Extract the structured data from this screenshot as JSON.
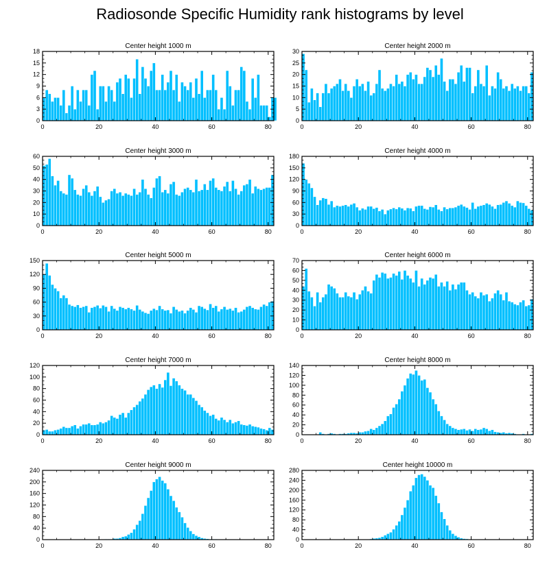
{
  "figure": {
    "title": "Radiosonde Specific Humidity rank histograms by level"
  },
  "colors": {
    "bar": "#00bfff",
    "bar_edge": "#ffffff",
    "axis": "#000000"
  },
  "chart_data": [
    {
      "type": "bar",
      "title": "Center height 1000 m",
      "xlim": [
        0,
        82
      ],
      "ylim": [
        0,
        18
      ],
      "xticks": [
        0,
        20,
        40,
        60,
        80
      ],
      "yticks": [
        0,
        3,
        6,
        9,
        12,
        15,
        18
      ],
      "values": [
        6,
        8,
        7,
        5,
        6,
        6,
        4,
        8,
        2,
        4,
        9,
        3,
        8,
        5,
        8,
        8,
        4,
        12,
        13,
        3,
        9,
        9,
        5,
        9,
        8,
        5,
        10,
        11,
        7,
        12,
        11,
        6,
        11,
        16,
        7,
        14,
        11,
        9,
        13,
        15,
        8,
        8,
        12,
        8,
        10,
        13,
        8,
        12,
        5,
        10,
        9,
        8,
        10,
        6,
        11,
        7,
        13,
        6,
        8,
        8,
        12,
        8,
        3,
        6,
        3,
        13,
        9,
        4,
        8,
        8,
        14,
        13,
        5,
        3,
        11,
        6,
        12,
        4,
        4,
        4,
        1,
        6,
        6
      ]
    },
    {
      "type": "bar",
      "title": "Center height 2000 m",
      "xlim": [
        0,
        82
      ],
      "ylim": [
        0,
        30
      ],
      "xticks": [
        0,
        20,
        40,
        60,
        80
      ],
      "yticks": [
        0,
        5,
        10,
        15,
        20,
        25,
        30
      ],
      "values": [
        29,
        22,
        8,
        14,
        9,
        12,
        6,
        12,
        16,
        12,
        14,
        15,
        16,
        18,
        13,
        16,
        13,
        10,
        15,
        18,
        15,
        16,
        13,
        17,
        11,
        12,
        16,
        22,
        14,
        13,
        14,
        16,
        15,
        20,
        16,
        17,
        15,
        20,
        21,
        18,
        20,
        16,
        16,
        19,
        23,
        22,
        19,
        24,
        20,
        27,
        17,
        13,
        18,
        18,
        16,
        21,
        24,
        17,
        23,
        23,
        12,
        15,
        22,
        16,
        15,
        24,
        11,
        15,
        14,
        21,
        18,
        14,
        15,
        13,
        16,
        14,
        15,
        13,
        15,
        15,
        12,
        21
      ]
    },
    {
      "type": "bar",
      "title": "Center height 3000 m",
      "xlim": [
        0,
        82
      ],
      "ylim": [
        0,
        60
      ],
      "xticks": [
        0,
        20,
        40,
        60,
        80
      ],
      "yticks": [
        0,
        10,
        20,
        30,
        40,
        50,
        60
      ],
      "values": [
        52,
        53,
        58,
        43,
        35,
        39,
        30,
        28,
        27,
        44,
        41,
        31,
        27,
        26,
        32,
        35,
        29,
        26,
        30,
        34,
        25,
        20,
        22,
        23,
        30,
        32,
        28,
        29,
        26,
        28,
        27,
        26,
        32,
        27,
        29,
        40,
        32,
        27,
        24,
        33,
        41,
        43,
        29,
        31,
        28,
        36,
        38,
        27,
        26,
        29,
        32,
        33,
        31,
        29,
        40,
        30,
        31,
        36,
        31,
        39,
        41,
        33,
        31,
        30,
        34,
        38,
        30,
        39,
        32,
        27,
        30,
        35,
        36,
        40,
        28,
        34,
        32,
        31,
        32,
        33,
        33,
        44
      ]
    },
    {
      "type": "bar",
      "title": "Center height 4000 m",
      "xlim": [
        0,
        82
      ],
      "ylim": [
        0,
        180
      ],
      "xticks": [
        0,
        20,
        40,
        60,
        80
      ],
      "yticks": [
        0,
        30,
        60,
        90,
        120,
        150,
        180
      ],
      "values": [
        162,
        120,
        110,
        98,
        75,
        54,
        66,
        72,
        70,
        55,
        64,
        48,
        52,
        50,
        52,
        54,
        50,
        55,
        58,
        48,
        40,
        45,
        42,
        50,
        50,
        44,
        47,
        38,
        42,
        30,
        40,
        43,
        46,
        43,
        48,
        45,
        40,
        46,
        45,
        38,
        50,
        52,
        52,
        44,
        42,
        49,
        48,
        54,
        42,
        38,
        48,
        43,
        46,
        46,
        48,
        52,
        55,
        50,
        47,
        42,
        60,
        44,
        50,
        52,
        54,
        58,
        55,
        50,
        44,
        54,
        55,
        60,
        64,
        58,
        52,
        48,
        64,
        60,
        59,
        52,
        44,
        40
      ]
    },
    {
      "type": "bar",
      "title": "Center height 5000 m",
      "xlim": [
        0,
        82
      ],
      "ylim": [
        0,
        150
      ],
      "xticks": [
        0,
        20,
        40,
        60,
        80
      ],
      "yticks": [
        0,
        30,
        60,
        90,
        120,
        150
      ],
      "values": [
        120,
        144,
        118,
        98,
        90,
        84,
        69,
        75,
        69,
        55,
        52,
        50,
        54,
        48,
        50,
        52,
        38,
        48,
        50,
        53,
        47,
        53,
        50,
        40,
        52,
        46,
        42,
        50,
        48,
        45,
        48,
        45,
        42,
        53,
        44,
        40,
        37,
        35,
        42,
        46,
        43,
        52,
        45,
        42,
        43,
        36,
        50,
        44,
        40,
        42,
        36,
        42,
        48,
        44,
        38,
        52,
        50,
        46,
        43,
        56,
        48,
        52,
        40,
        45,
        50,
        44,
        46,
        42,
        48,
        38,
        40,
        44,
        50,
        52,
        48,
        45,
        44,
        50,
        55,
        52,
        60,
        62
      ]
    },
    {
      "type": "bar",
      "title": "Center height 6000 m",
      "xlim": [
        0,
        82
      ],
      "ylim": [
        0,
        70
      ],
      "xticks": [
        0,
        20,
        40,
        60,
        80
      ],
      "yticks": [
        0,
        10,
        20,
        30,
        40,
        50,
        60,
        70
      ],
      "values": [
        44,
        62,
        39,
        33,
        24,
        38,
        28,
        33,
        36,
        46,
        44,
        42,
        37,
        33,
        33,
        38,
        34,
        33,
        38,
        31,
        36,
        40,
        44,
        39,
        37,
        50,
        56,
        53,
        58,
        57,
        52,
        53,
        57,
        55,
        59,
        51,
        60,
        55,
        52,
        48,
        60,
        44,
        52,
        46,
        50,
        53,
        52,
        56,
        44,
        48,
        44,
        49,
        40,
        46,
        41,
        46,
        48,
        48,
        40,
        36,
        38,
        34,
        32,
        38,
        35,
        36,
        29,
        32,
        37,
        40,
        36,
        30,
        38,
        29,
        28,
        26,
        25,
        28,
        30,
        24,
        25,
        31
      ]
    },
    {
      "type": "bar",
      "title": "Center height 7000 m",
      "xlim": [
        0,
        82
      ],
      "ylim": [
        0,
        120
      ],
      "xticks": [
        0,
        20,
        40,
        60,
        80
      ],
      "yticks": [
        0,
        20,
        40,
        60,
        80,
        100,
        120
      ],
      "values": [
        8,
        9,
        6,
        6,
        8,
        9,
        11,
        14,
        12,
        12,
        15,
        17,
        11,
        15,
        18,
        18,
        20,
        17,
        17,
        18,
        22,
        20,
        22,
        25,
        33,
        30,
        28,
        35,
        38,
        30,
        38,
        43,
        48,
        52,
        58,
        63,
        70,
        78,
        83,
        86,
        80,
        88,
        82,
        95,
        108,
        85,
        98,
        93,
        86,
        80,
        77,
        70,
        70,
        64,
        59,
        52,
        48,
        42,
        38,
        33,
        35,
        28,
        25,
        30,
        26,
        22,
        26,
        20,
        22,
        24,
        18,
        17,
        16,
        18,
        15,
        14,
        13,
        11,
        10,
        8,
        12,
        9
      ]
    },
    {
      "type": "bar",
      "title": "Center height 8000 m",
      "xlim": [
        0,
        82
      ],
      "ylim": [
        0,
        140
      ],
      "xticks": [
        0,
        20,
        40,
        60,
        80
      ],
      "yticks": [
        0,
        20,
        40,
        60,
        80,
        100,
        120,
        140
      ],
      "values": [
        0,
        1,
        0,
        0,
        1,
        0,
        5,
        2,
        1,
        2,
        3,
        2,
        1,
        2,
        2,
        2,
        3,
        4,
        4,
        3,
        5,
        5,
        7,
        8,
        12,
        10,
        14,
        18,
        22,
        28,
        38,
        42,
        55,
        62,
        72,
        88,
        100,
        114,
        124,
        122,
        130,
        120,
        110,
        112,
        95,
        86,
        72,
        62,
        48,
        38,
        30,
        22,
        18,
        14,
        12,
        10,
        11,
        12,
        9,
        11,
        8,
        12,
        10,
        11,
        14,
        12,
        8,
        10,
        6,
        5,
        4,
        5,
        3,
        4,
        3,
        2,
        1,
        1,
        2,
        1,
        1,
        2
      ]
    },
    {
      "type": "bar",
      "title": "Center height 9000 m",
      "xlim": [
        0,
        82
      ],
      "ylim": [
        0,
        240
      ],
      "xticks": [
        0,
        20,
        40,
        60,
        80
      ],
      "yticks": [
        0,
        40,
        80,
        120,
        160,
        200,
        240
      ],
      "values": [
        0,
        0,
        0,
        0,
        0,
        0,
        0,
        0,
        0,
        0,
        0,
        0,
        0,
        0,
        0,
        0,
        0,
        0,
        1,
        0,
        1,
        1,
        2,
        2,
        2,
        4,
        4,
        6,
        10,
        12,
        18,
        24,
        36,
        52,
        66,
        90,
        118,
        145,
        170,
        200,
        210,
        218,
        205,
        196,
        175,
        152,
        135,
        112,
        96,
        78,
        58,
        42,
        30,
        20,
        14,
        10,
        6,
        4,
        3,
        2,
        2,
        2,
        1,
        1,
        1,
        1,
        1,
        0,
        0,
        0,
        0,
        0,
        0,
        0,
        0,
        0,
        0,
        0,
        0,
        0,
        0,
        0
      ]
    },
    {
      "type": "bar",
      "title": "Center height 10000 m",
      "xlim": [
        0,
        82
      ],
      "ylim": [
        0,
        280
      ],
      "xticks": [
        0,
        20,
        40,
        60,
        80
      ],
      "yticks": [
        0,
        40,
        80,
        120,
        160,
        200,
        240,
        280
      ],
      "values": [
        0,
        0,
        0,
        0,
        0,
        0,
        0,
        0,
        0,
        0,
        0,
        0,
        0,
        0,
        0,
        0,
        0,
        0,
        1,
        0,
        1,
        1,
        2,
        2,
        3,
        5,
        6,
        8,
        12,
        18,
        24,
        30,
        42,
        58,
        74,
        100,
        130,
        160,
        196,
        220,
        250,
        262,
        265,
        255,
        240,
        220,
        210,
        178,
        148,
        112,
        84,
        58,
        38,
        24,
        16,
        10,
        6,
        4,
        3,
        2,
        2,
        1,
        1,
        1,
        1,
        1,
        0,
        0,
        0,
        0,
        0,
        0,
        0,
        0,
        0,
        0,
        0,
        0,
        0,
        0,
        0,
        0
      ]
    }
  ]
}
